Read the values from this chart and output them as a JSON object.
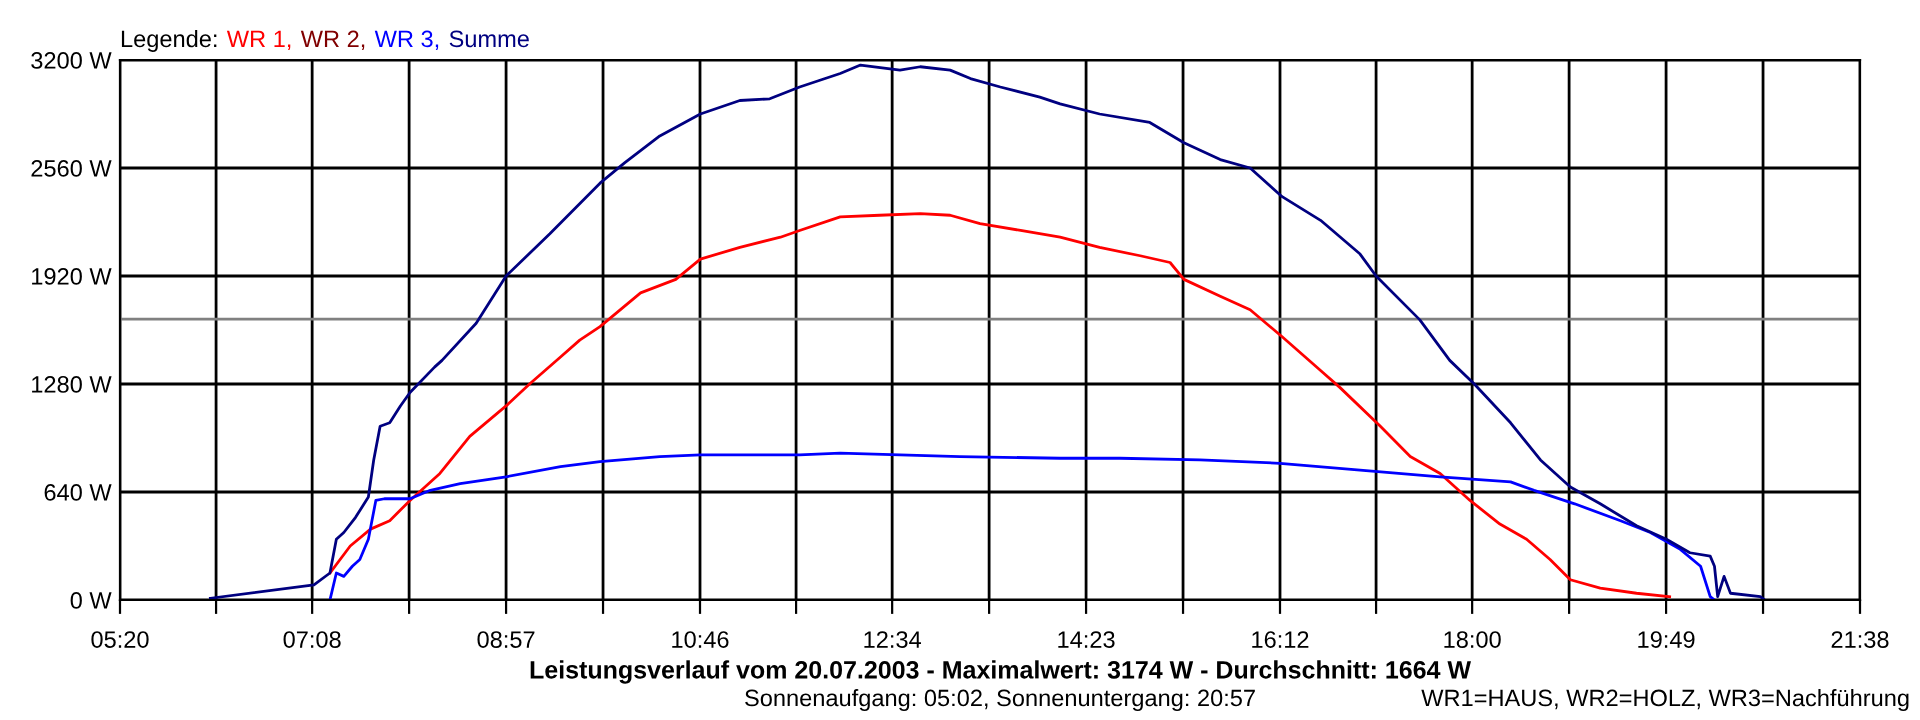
{
  "chart_data": {
    "type": "line",
    "title": "Leistungsverlauf vom 20.07.2003 - Maximalwert: 3174 W - Durchschnitt: 1664 W",
    "subtitle": "Sonnenaufgang: 05:02, Sonnenuntergang: 20:57",
    "annotations": [
      "WR1=HAUS, WR2=HOLZ, WR3=Nachführung"
    ],
    "legend_title": "Legende:",
    "legend": "top left",
    "grid": true,
    "marker": "none",
    "line_style": "solid",
    "xlim": [
      5.3333,
      21.6333
    ],
    "ylim": [
      0,
      3200
    ],
    "xticks": [
      {
        "value": 5.3333,
        "label": "05:20"
      },
      {
        "value": 6.2333,
        "label": null
      },
      {
        "value": 7.1333,
        "label": "07:08"
      },
      {
        "value": 8.0417,
        "label": null
      },
      {
        "value": 8.95,
        "label": "08:57"
      },
      {
        "value": 9.8583,
        "label": null
      },
      {
        "value": 10.7667,
        "label": "10:46"
      },
      {
        "value": 11.6667,
        "label": null
      },
      {
        "value": 12.5667,
        "label": "12:34"
      },
      {
        "value": 13.475,
        "label": null
      },
      {
        "value": 14.3833,
        "label": "14:23"
      },
      {
        "value": 15.2917,
        "label": null
      },
      {
        "value": 16.2,
        "label": "16:12"
      },
      {
        "value": 17.1,
        "label": null
      },
      {
        "value": 18.0,
        "label": "18:00"
      },
      {
        "value": 18.9083,
        "label": null
      },
      {
        "value": 19.8167,
        "label": "19:49"
      },
      {
        "value": 20.725,
        "label": null
      },
      {
        "value": 21.6333,
        "label": "21:38"
      }
    ],
    "yticks": [
      {
        "value": 0,
        "label": "0 W"
      },
      {
        "value": 640,
        "label": "640 W"
      },
      {
        "value": 1280,
        "label": "1280 W"
      },
      {
        "value": 1920,
        "label": "1920 W"
      },
      {
        "value": 2560,
        "label": "2560 W"
      },
      {
        "value": 3200,
        "label": "3200 W"
      }
    ],
    "ref_lines": [
      {
        "axis": "y",
        "value": 1664,
        "color": "#808080",
        "line_style": "solid"
      }
    ],
    "series": [
      {
        "name": "WR 1,",
        "color": "#ff0000",
        "x": [
          7.3,
          7.49,
          7.68,
          7.86,
          8.05,
          8.33,
          8.61,
          8.95,
          9.17,
          9.46,
          9.64,
          9.83,
          10.21,
          10.54,
          10.77,
          11.14,
          11.52,
          11.7,
          12.08,
          12.45,
          12.83,
          13.11,
          13.39,
          13.77,
          14.14,
          14.51,
          14.89,
          15.17,
          15.3,
          15.64,
          15.92,
          16.22,
          16.58,
          16.76,
          17.14,
          17.42,
          17.7,
          17.98,
          18.26,
          18.51,
          18.73,
          18.92,
          19.2,
          19.54,
          19.85
        ],
        "values": [
          160,
          320,
          420,
          470,
          590,
          750,
          970,
          1150,
          1280,
          1440,
          1540,
          1620,
          1820,
          1900,
          2020,
          2090,
          2150,
          2190,
          2270,
          2280,
          2290,
          2280,
          2230,
          2190,
          2150,
          2090,
          2040,
          2000,
          1900,
          1800,
          1720,
          1560,
          1360,
          1260,
          1030,
          850,
          750,
          590,
          450,
          360,
          240,
          120,
          70,
          40,
          20
        ]
      },
      {
        "name": "WR 2,",
        "color": "#800000"
      },
      {
        "name": "WR 3,",
        "color": "#0000ff",
        "x": [
          7.3,
          7.36,
          7.43,
          7.51,
          7.58,
          7.66,
          7.73,
          7.81,
          8.05,
          8.24,
          8.52,
          8.95,
          9.46,
          9.83,
          10.39,
          10.77,
          11.33,
          11.7,
          12.08,
          12.64,
          13.2,
          14.14,
          14.7,
          15.45,
          16.2,
          16.95,
          17.7,
          18.36,
          18.58,
          18.96,
          19.39,
          19.67,
          19.95,
          20.14,
          20.23,
          20.27
        ],
        "values": [
          0,
          160,
          140,
          200,
          240,
          360,
          590,
          600,
          600,
          650,
          690,
          730,
          790,
          820,
          850,
          860,
          860,
          860,
          870,
          860,
          850,
          840,
          840,
          830,
          810,
          770,
          730,
          700,
          650,
          570,
          470,
          400,
          300,
          200,
          20,
          0
        ]
      },
      {
        "name": "Summe",
        "color": "#000080",
        "x": [
          6.18,
          7.15,
          7.3,
          7.36,
          7.43,
          7.54,
          7.66,
          7.71,
          7.77,
          7.86,
          7.96,
          8.05,
          8.28,
          8.35,
          8.67,
          8.95,
          9.36,
          9.83,
          10.06,
          10.39,
          10.77,
          11.14,
          11.42,
          11.7,
          12.08,
          12.27,
          12.64,
          12.83,
          13.11,
          13.3,
          13.58,
          13.95,
          14.14,
          14.51,
          14.98,
          15.3,
          15.64,
          15.92,
          16.22,
          16.58,
          16.95,
          17.1,
          17.51,
          17.79,
          18.02,
          18.36,
          18.64,
          18.92,
          19.2,
          19.54,
          19.82,
          20.04,
          20.23,
          20.27,
          20.3,
          20.36,
          20.42,
          20.7,
          20.74
        ],
        "values": [
          10,
          90,
          160,
          360,
          400,
          490,
          610,
          830,
          1030,
          1050,
          1150,
          1230,
          1380,
          1420,
          1640,
          1920,
          2170,
          2470,
          2590,
          2750,
          2880,
          2960,
          2970,
          3040,
          3120,
          3170,
          3140,
          3160,
          3140,
          3090,
          3040,
          2980,
          2940,
          2880,
          2830,
          2710,
          2610,
          2560,
          2390,
          2250,
          2050,
          1920,
          1660,
          1420,
          1280,
          1050,
          830,
          670,
          570,
          440,
          360,
          280,
          260,
          200,
          20,
          140,
          40,
          20,
          0
        ]
      }
    ]
  }
}
